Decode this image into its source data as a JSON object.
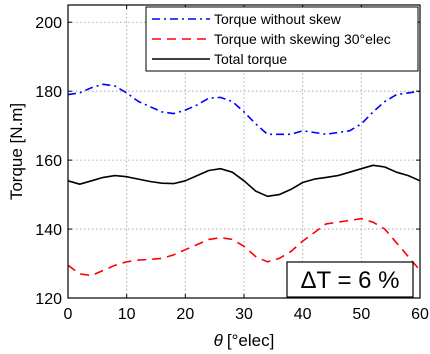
{
  "chart_data": {
    "type": "line",
    "title": "",
    "xlabel_symbol": "θ",
    "xlabel_unit": "[°elec]",
    "ylabel": "Torque [N.m]",
    "xlim": [
      0,
      60
    ],
    "ylim": [
      120,
      205
    ],
    "xticks": [
      "0",
      "10",
      "20",
      "30",
      "40",
      "50",
      "60"
    ],
    "yticks": [
      "120",
      "140",
      "160",
      "180",
      "200"
    ],
    "grid": true,
    "legend_position": "top-right",
    "annotation": "ΔT = 6 %",
    "x": [
      0,
      2,
      4,
      6,
      8,
      10,
      12,
      14,
      16,
      18,
      20,
      22,
      24,
      26,
      28,
      30,
      32,
      34,
      36,
      38,
      40,
      42,
      44,
      46,
      48,
      50,
      52,
      54,
      56,
      58,
      60
    ],
    "series": [
      {
        "name": "Torque without skew",
        "color": "#0000ff",
        "style": "dashdot",
        "values": [
          179,
          179.5,
          181,
          182,
          181.5,
          179.5,
          177,
          175.5,
          174,
          173.5,
          174.5,
          176,
          178,
          178.2,
          177,
          174,
          170.5,
          167.5,
          167.5,
          167.5,
          168.5,
          168,
          167.5,
          168,
          168.5,
          170.5,
          174,
          177,
          179,
          179.5,
          180
        ]
      },
      {
        "name": "Torque with skewing 30°elec",
        "color": "#ff0000",
        "style": "dashed",
        "values": [
          129.5,
          127,
          126.5,
          128,
          129.5,
          130.5,
          131,
          131.2,
          131.5,
          132.5,
          134,
          135.5,
          137,
          137.5,
          137,
          135,
          132,
          130.5,
          131.5,
          133.5,
          136.5,
          139,
          141.5,
          142,
          142.5,
          143,
          142,
          140,
          136,
          132,
          128
        ]
      },
      {
        "name": "Total torque",
        "color": "#000000",
        "style": "solid",
        "values": [
          154,
          153,
          154,
          155,
          155.5,
          155.2,
          154.5,
          153.8,
          153.3,
          153.2,
          154,
          155.5,
          157,
          157.5,
          156.5,
          154,
          151,
          149.5,
          150,
          151.5,
          153.5,
          154.5,
          155,
          155.5,
          156.5,
          157.5,
          158.5,
          158,
          156.5,
          155.5,
          154
        ]
      }
    ]
  }
}
